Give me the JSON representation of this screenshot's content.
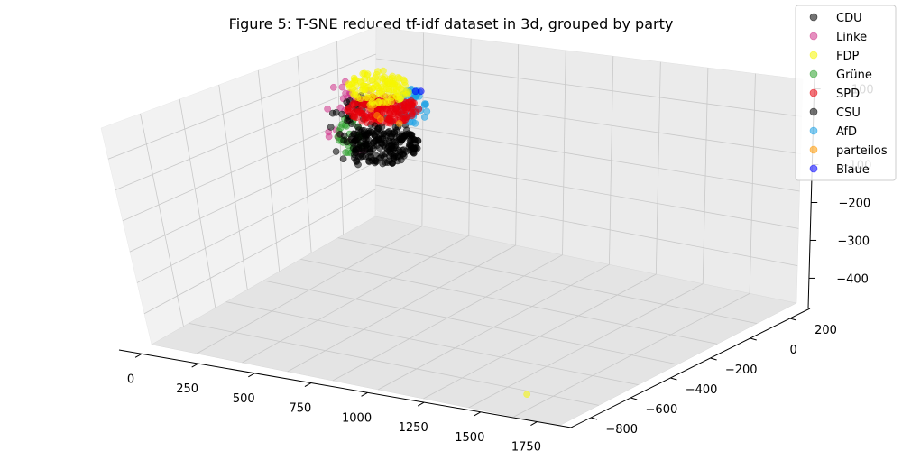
{
  "chart_data": {
    "type": "scatter",
    "projection": "3d",
    "title": "Figure 5: T-SNE reduced tf-idf dataset in 3d, grouped by party",
    "xlabel": "",
    "ylabel": "",
    "zlabel": "",
    "x_ticks": [
      "0",
      "250",
      "500",
      "750",
      "1000",
      "1250",
      "1500",
      "1750"
    ],
    "y_ticks": [
      "200",
      "0",
      "−200",
      "−400",
      "−600",
      "−800"
    ],
    "z_ticks": [
      "100",
      "−100",
      "−200",
      "−300",
      "−400"
    ],
    "xlim": [
      -100,
      1900
    ],
    "ylim": [
      -900,
      300
    ],
    "zlim": [
      -480,
      130
    ],
    "grid": true,
    "legend_position": "top-right",
    "series": [
      {
        "name": "CDU",
        "color": "#000000",
        "count": 60
      },
      {
        "name": "Linke",
        "color": "#d0338a",
        "count": 30
      },
      {
        "name": "FDP",
        "color": "#f5f500",
        "count": 110
      },
      {
        "name": "Grüne",
        "color": "#2ca02c",
        "count": 30
      },
      {
        "name": "SPD",
        "color": "#e8000b",
        "count": 160
      },
      {
        "name": "CSU",
        "color": "#000000",
        "count": 190
      },
      {
        "name": "AfD",
        "color": "#1aa0e6",
        "count": 45
      },
      {
        "name": "parteilos",
        "color": "#ff9900",
        "count": 4
      },
      {
        "name": "Blaue",
        "color": "#0000ff",
        "count": 2
      }
    ],
    "outliers": [
      {
        "series": "FDP",
        "x": 1650,
        "y": -800,
        "z": -450
      }
    ]
  }
}
